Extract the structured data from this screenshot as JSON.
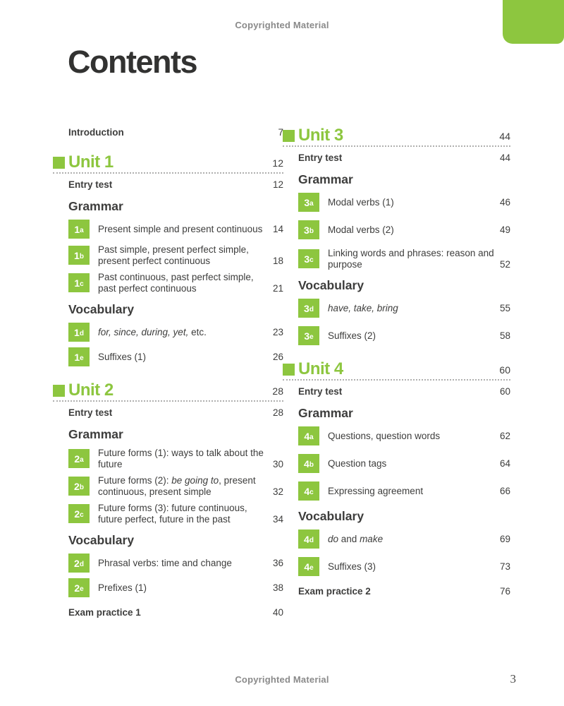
{
  "meta": {
    "copyright_top": "Copyrighted Material",
    "copyright_bottom": "Copyrighted Material",
    "title": "Contents",
    "page_number": "3"
  },
  "colors": {
    "accent": "#8dc63f",
    "text": "#3d3d3c",
    "muted": "#8a8a8a"
  },
  "toc": {
    "intro": {
      "label": "Introduction",
      "page": "7"
    },
    "columns": [
      {
        "units": [
          {
            "title": "Unit 1",
            "page": "12",
            "entry": {
              "label": "Entry test",
              "page": "12"
            },
            "groups": [
              {
                "heading": "Grammar",
                "items": [
                  {
                    "badge": "1a",
                    "segments": [
                      {
                        "t": "Present simple and present continuous"
                      }
                    ],
                    "page": "14"
                  },
                  {
                    "badge": "1b",
                    "segments": [
                      {
                        "t": "Past simple, present perfect simple, present perfect continuous"
                      }
                    ],
                    "page": "18"
                  },
                  {
                    "badge": "1c",
                    "segments": [
                      {
                        "t": "Past continuous, past perfect simple, past perfect continuous"
                      }
                    ],
                    "page": "21"
                  }
                ]
              },
              {
                "heading": "Vocabulary",
                "items": [
                  {
                    "badge": "1d",
                    "segments": [
                      {
                        "t": "for, since, during, yet,",
                        "i": true
                      },
                      {
                        "t": " etc."
                      }
                    ],
                    "page": "23"
                  },
                  {
                    "badge": "1e",
                    "segments": [
                      {
                        "t": "Suffixes (1)"
                      }
                    ],
                    "page": "26"
                  }
                ]
              }
            ]
          },
          {
            "title": "Unit 2",
            "page": "28",
            "entry": {
              "label": "Entry test",
              "page": "28"
            },
            "groups": [
              {
                "heading": "Grammar",
                "items": [
                  {
                    "badge": "2a",
                    "segments": [
                      {
                        "t": "Future forms (1): ways to talk about the future"
                      }
                    ],
                    "page": "30"
                  },
                  {
                    "badge": "2b",
                    "segments": [
                      {
                        "t": "Future forms (2): "
                      },
                      {
                        "t": "be going to",
                        "i": true
                      },
                      {
                        "t": ", present continuous, present simple"
                      }
                    ],
                    "page": "32"
                  },
                  {
                    "badge": "2c",
                    "segments": [
                      {
                        "t": "Future forms (3): future continuous, future perfect, future in the past"
                      }
                    ],
                    "page": "34"
                  }
                ]
              },
              {
                "heading": "Vocabulary",
                "items": [
                  {
                    "badge": "2d",
                    "segments": [
                      {
                        "t": "Phrasal verbs: time and change"
                      }
                    ],
                    "page": "36"
                  },
                  {
                    "badge": "2e",
                    "segments": [
                      {
                        "t": "Prefixes (1)"
                      }
                    ],
                    "page": "38"
                  }
                ]
              }
            ],
            "exam": {
              "label": "Exam practice 1",
              "page": "40"
            }
          }
        ]
      },
      {
        "units": [
          {
            "title": "Unit 3",
            "page": "44",
            "entry": {
              "label": "Entry test",
              "page": "44"
            },
            "groups": [
              {
                "heading": "Grammar",
                "items": [
                  {
                    "badge": "3a",
                    "segments": [
                      {
                        "t": "Modal verbs (1)"
                      }
                    ],
                    "page": "46"
                  },
                  {
                    "badge": "3b",
                    "segments": [
                      {
                        "t": "Modal verbs (2)"
                      }
                    ],
                    "page": "49"
                  },
                  {
                    "badge": "3c",
                    "segments": [
                      {
                        "t": "Linking words and phrases: reason and purpose"
                      }
                    ],
                    "page": "52"
                  }
                ]
              },
              {
                "heading": "Vocabulary",
                "items": [
                  {
                    "badge": "3d",
                    "segments": [
                      {
                        "t": "have, take, bring",
                        "i": true
                      }
                    ],
                    "page": "55"
                  },
                  {
                    "badge": "3e",
                    "segments": [
                      {
                        "t": "Suffixes (2)"
                      }
                    ],
                    "page": "58"
                  }
                ]
              }
            ]
          },
          {
            "title": "Unit 4",
            "page": "60",
            "entry": {
              "label": "Entry test",
              "page": "60"
            },
            "groups": [
              {
                "heading": "Grammar",
                "items": [
                  {
                    "badge": "4a",
                    "segments": [
                      {
                        "t": "Questions, question words"
                      }
                    ],
                    "page": "62"
                  },
                  {
                    "badge": "4b",
                    "segments": [
                      {
                        "t": "Question tags"
                      }
                    ],
                    "page": "64"
                  },
                  {
                    "badge": "4c",
                    "segments": [
                      {
                        "t": "Expressing agreement"
                      }
                    ],
                    "page": "66"
                  }
                ]
              },
              {
                "heading": "Vocabulary",
                "items": [
                  {
                    "badge": "4d",
                    "segments": [
                      {
                        "t": "do",
                        "i": true
                      },
                      {
                        "t": " and "
                      },
                      {
                        "t": "make",
                        "i": true
                      }
                    ],
                    "page": "69"
                  },
                  {
                    "badge": "4e",
                    "segments": [
                      {
                        "t": "Suffixes (3)"
                      }
                    ],
                    "page": "73"
                  }
                ]
              }
            ],
            "exam": {
              "label": "Exam practice 2",
              "page": "76"
            }
          }
        ]
      }
    ]
  }
}
